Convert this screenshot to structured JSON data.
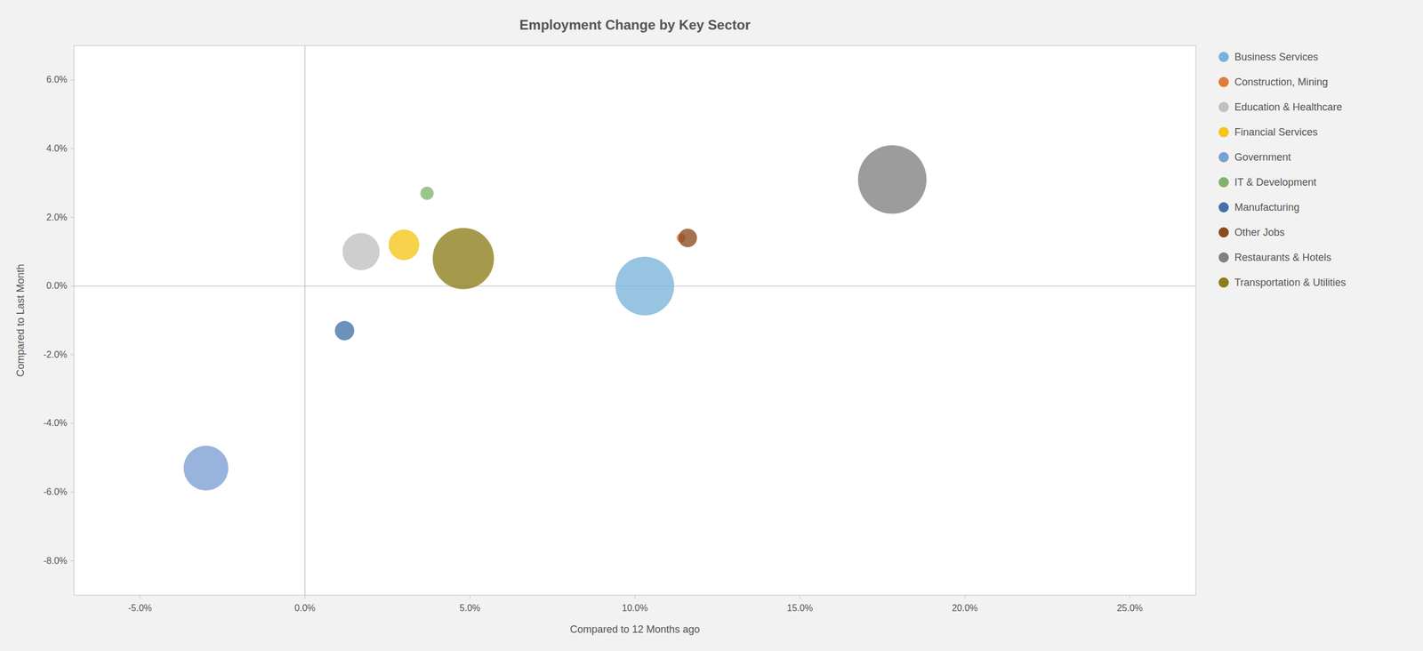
{
  "chart_data": {
    "type": "bubble",
    "title": "Employment Change by Key Sector",
    "x_label": "Compared to 12 Months ago",
    "y_label": "Compared to Last Month",
    "xlim": [
      -0.07,
      0.27
    ],
    "ylim": [
      -0.09,
      0.07
    ],
    "xticks": [
      {
        "value": -0.05,
        "label": "-5.0%"
      },
      {
        "value": 0.0,
        "label": "0.0%"
      },
      {
        "value": 0.05,
        "label": "5.0%"
      },
      {
        "value": 0.1,
        "label": "10.0%"
      },
      {
        "value": 0.15,
        "label": "15.0%"
      },
      {
        "value": 0.2,
        "label": "20.0%"
      },
      {
        "value": 0.25,
        "label": "25.0%"
      }
    ],
    "yticks": [
      {
        "value": -0.08,
        "label": "-8.0%"
      },
      {
        "value": -0.06,
        "label": "-6.0%"
      },
      {
        "value": -0.04,
        "label": "-4.0%"
      },
      {
        "value": -0.02,
        "label": "-2.0%"
      },
      {
        "value": 0.0,
        "label": "0.0%"
      },
      {
        "value": 0.02,
        "label": "2.0%"
      },
      {
        "value": 0.04,
        "label": "4.0%"
      },
      {
        "value": 0.06,
        "label": "6.0%"
      }
    ],
    "reference_lines": {
      "x": 0.0,
      "y": 0.0
    },
    "grid": false,
    "legend": "right",
    "series": [
      {
        "name": "Business Services",
        "color": "#7ab3d8",
        "x": [
          0.103
        ],
        "values": [
          0.0
        ],
        "size": [
          5500
        ]
      },
      {
        "name": "Construction, Mining",
        "color": "#e07b3a",
        "x": [
          0.114
        ],
        "values": [
          0.014
        ],
        "size": [
          130
        ]
      },
      {
        "name": "Education & Healthcare",
        "color": "#c0c0c0",
        "x": [
          0.017
        ],
        "values": [
          0.01
        ],
        "size": [
          2200
        ]
      },
      {
        "name": "Financial Services",
        "color": "#f5c518",
        "x": [
          0.03
        ],
        "values": [
          0.012
        ],
        "size": [
          1500
        ]
      },
      {
        "name": "Government",
        "color": "#7b9fd4",
        "x": [
          -0.03
        ],
        "values": [
          -0.053
        ],
        "size": [
          3200
        ]
      },
      {
        "name": "IT & Development",
        "color": "#82b36e",
        "x": [
          0.037
        ],
        "values": [
          0.027
        ],
        "size": [
          280
        ]
      },
      {
        "name": "Manufacturing",
        "color": "#4472a8",
        "x": [
          0.012
        ],
        "values": [
          -0.013
        ],
        "size": [
          600
        ]
      },
      {
        "name": "Other Jobs",
        "color": "#8b4a1c",
        "x": [
          0.116
        ],
        "values": [
          0.014
        ],
        "size": [
          550
        ]
      },
      {
        "name": "Restaurants & Hotels",
        "color": "#808080",
        "x": [
          0.178
        ],
        "values": [
          0.031
        ],
        "size": [
          7500
        ]
      },
      {
        "name": "Transportation & Utilities",
        "color": "#8c7d1a",
        "x": [
          0.048
        ],
        "values": [
          0.008
        ],
        "size": [
          6000
        ]
      }
    ]
  }
}
